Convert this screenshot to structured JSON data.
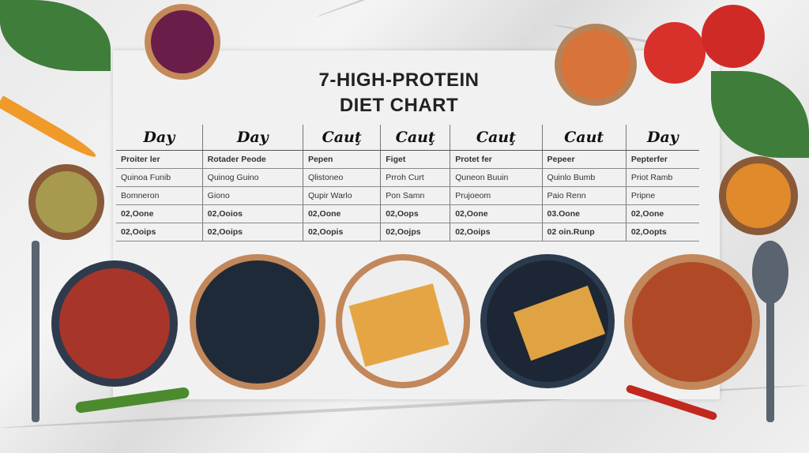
{
  "title": {
    "line1": "7-HIGH-PROTEIN",
    "line2": "DIET CHART"
  },
  "table": {
    "headers": [
      "Day",
      "Day",
      "Cauţ",
      "Cauţ",
      "Cauţ",
      "Caut",
      "Day"
    ],
    "rows": [
      [
        "Proiter ler",
        "Rotader Peode",
        "Pepen",
        "Figet",
        "Protet fer",
        "Pepeer",
        "Pepterfer"
      ],
      [
        "Quinoa Funib",
        "Quinog Guino",
        "Qlistoneo",
        "Prroh Curt",
        "Quneon Buuin",
        "Quinlo Bumb",
        "Priot Ramb"
      ],
      [
        "Bomneron",
        "Giono",
        "Qupir Warlo",
        "Pon Samn",
        "Prujoeom",
        "Paio Renn",
        "Pripne"
      ],
      [
        "02,Oone",
        "02,Ooios",
        "02,Oone",
        "02,Oops",
        "02,Oone",
        "03.Oone",
        "02,Oone"
      ],
      [
        "02,Ooips",
        "02,Ooips",
        "02,Oopis",
        "02,Oojps",
        "02,Ooips",
        "02 oin.Runp",
        "02,Oopts"
      ]
    ],
    "bold_rows": [
      0,
      3,
      4
    ]
  }
}
